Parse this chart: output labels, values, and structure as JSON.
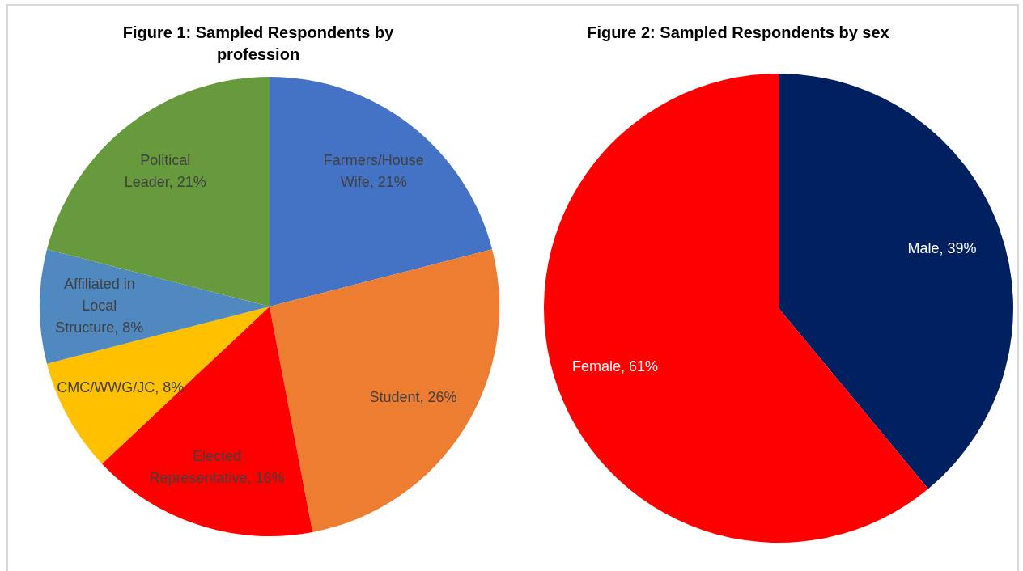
{
  "chart_data": [
    {
      "type": "pie",
      "title": "Figure 1: Sampled Respondents by profession",
      "categories": [
        "Farmers/House Wife",
        "Student",
        "Elected Representative",
        "CMC/WWG/JC",
        "Affiliated in Local Structure",
        "Political Leader"
      ],
      "values": [
        21,
        26,
        16,
        8,
        8,
        21
      ],
      "colors": [
        "#4472c4",
        "#ed7d31",
        "#ff0000",
        "#ffc000",
        "#4f89bf",
        "#669a3d"
      ],
      "value_labels": [
        "21%",
        "26%",
        "16%",
        "8%",
        "8%",
        "21%"
      ]
    },
    {
      "type": "pie",
      "title": "Figure 2: Sampled Respondents by sex",
      "categories": [
        "Male",
        "Female"
      ],
      "values": [
        39,
        61
      ],
      "colors": [
        "#002060",
        "#ff0000"
      ],
      "value_labels": [
        "39%",
        "61%"
      ]
    }
  ]
}
